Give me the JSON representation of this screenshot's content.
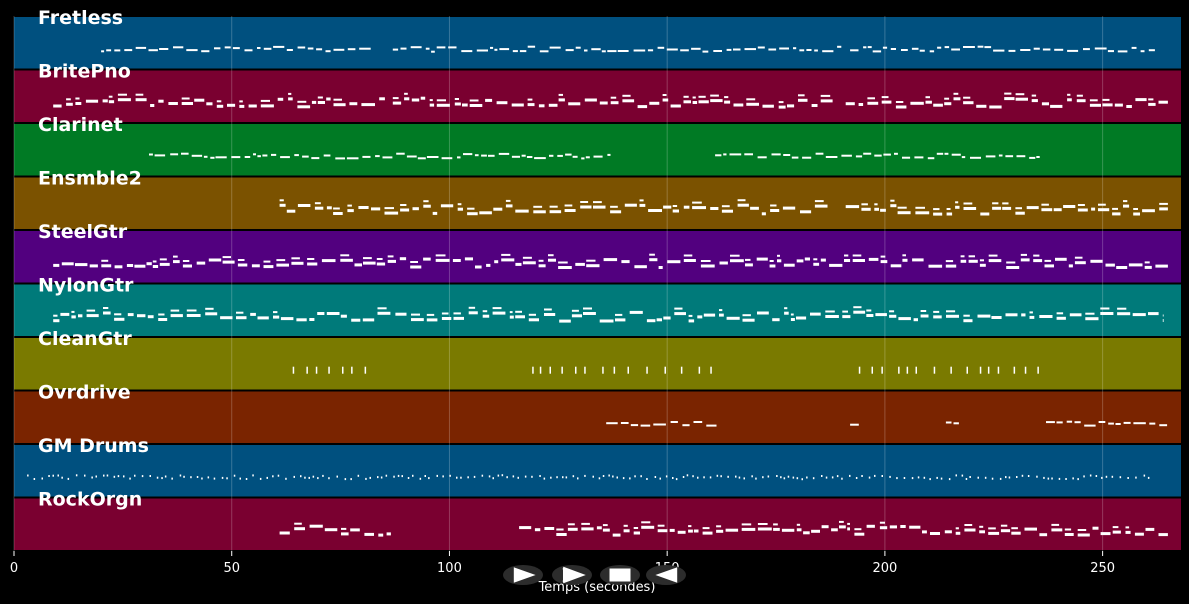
{
  "chart_data": {
    "type": "piano-roll",
    "xlabel": "Temps (secondes)",
    "xlim": [
      0,
      268
    ],
    "x_ticks": [
      "0",
      "50",
      "100",
      "150",
      "200",
      "250"
    ],
    "x_tick_values": [
      0,
      50,
      100,
      150,
      200,
      250
    ],
    "grid": true,
    "tracks": [
      {
        "name": "Fretless",
        "color": "#00507f",
        "style": "dash",
        "segments": [
          [
            20,
            82
          ],
          [
            87,
            190
          ],
          [
            192,
            262
          ]
        ]
      },
      {
        "name": "BritePno",
        "color": "#7a0030",
        "style": "block",
        "segments": [
          [
            9,
            86
          ],
          [
            87,
            188
          ],
          [
            191,
            265
          ]
        ]
      },
      {
        "name": "Clarinet",
        "color": "#007a24",
        "style": "dash",
        "segments": [
          [
            31,
            137
          ],
          [
            161,
            236
          ]
        ]
      },
      {
        "name": "Ensmble2",
        "color": "#7b5200",
        "style": "block",
        "segments": [
          [
            61,
            187
          ],
          [
            191,
            265
          ]
        ]
      },
      {
        "name": "SteelGtr",
        "color": "#52007f",
        "style": "block",
        "segments": [
          [
            9,
            265
          ]
        ]
      },
      {
        "name": "NylonGtr",
        "color": "#007a7a",
        "style": "block",
        "segments": [
          [
            9,
            264
          ]
        ]
      },
      {
        "name": "CleanGtr",
        "color": "#7a7a00",
        "style": "ticks",
        "segments": [
          [
            64,
            81
          ],
          [
            119,
            162
          ],
          [
            194,
            236
          ]
        ]
      },
      {
        "name": "Ovrdrive",
        "color": "#7a2400",
        "style": "line",
        "segments": [
          [
            136,
            162
          ],
          [
            192,
            194
          ],
          [
            214,
            217
          ],
          [
            237,
            265
          ]
        ]
      },
      {
        "name": "GM Drums",
        "color": "#00507f",
        "style": "dots",
        "segments": [
          [
            3,
            262
          ]
        ]
      },
      {
        "name": "RockOrgn",
        "color": "#7a0030",
        "style": "block",
        "segments": [
          [
            61,
            87
          ],
          [
            116,
            192
          ],
          [
            193,
            265
          ]
        ]
      }
    ]
  },
  "controls": [
    {
      "name": "play-button",
      "icon": "play-icon"
    },
    {
      "name": "fast-forward-button",
      "icon": "fast-forward-icon"
    },
    {
      "name": "stop-button",
      "icon": "stop-icon"
    },
    {
      "name": "rewind-button",
      "icon": "rewind-icon"
    }
  ]
}
